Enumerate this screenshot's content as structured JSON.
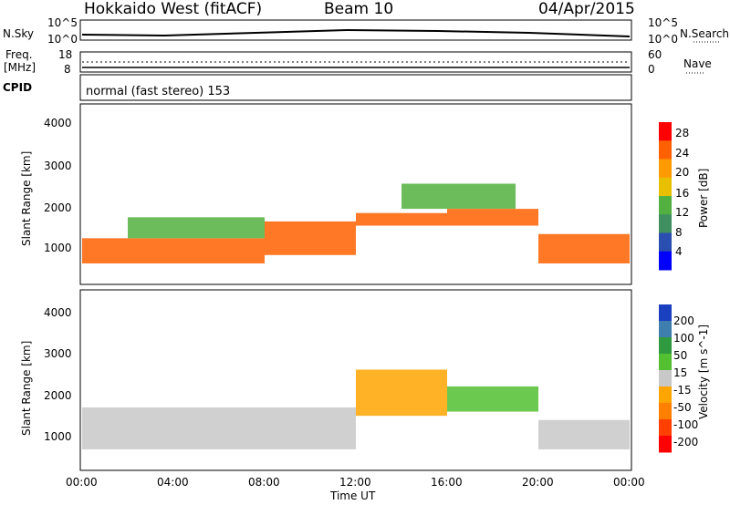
{
  "header": {
    "station": "Hokkaido West (fitACF)",
    "beam": "Beam 10",
    "date": "04/Apr/2015"
  },
  "top_panels": {
    "nsky_label": "N.Sky",
    "nsky_ticks": [
      "10^5",
      "10^0"
    ],
    "nsky_right_ticks": [
      "10^5",
      "10^0"
    ],
    "nsearch_label": "N.Search",
    "freq_label_1": "Freq.",
    "freq_label_2": "[MHz]",
    "freq_ticks": [
      "18",
      "8"
    ],
    "nave_label": "Nave",
    "nave_ticks": [
      "60",
      "0"
    ],
    "cpid_label": "CPID",
    "cpid_value": "normal (fast stereo) 153"
  },
  "colors": {
    "power_scale": [
      "#0000ff",
      "#2a4fb0",
      "#3f8f60",
      "#52b040",
      "#e8c000",
      "#ff9a00",
      "#ff6000",
      "#ff0000"
    ],
    "velocity_scale": [
      "#1a3fbf",
      "#3f7fb0",
      "#2f9a3f",
      "#52c030",
      "#c8c8c8",
      "#ffa500",
      "#ff8000",
      "#ff4000",
      "#ff0000"
    ]
  },
  "chart_data": [
    {
      "type": "heatmap",
      "name": "power",
      "ylabel": "Slant Range [km]",
      "yticks": [
        "1000",
        "2000",
        "3000",
        "4000"
      ],
      "yrange": [
        200,
        4500
      ],
      "colorbar_label": "Power [dB]",
      "colorbar_ticks": [
        "4",
        "8",
        "12",
        "16",
        "20",
        "24",
        "28"
      ],
      "bands": [
        {
          "t": [
            0,
            8
          ],
          "r": [
            700,
            1300
          ],
          "level": "high"
        },
        {
          "t": [
            2,
            8
          ],
          "r": [
            1300,
            1800
          ],
          "level": "mid"
        },
        {
          "t": [
            8,
            12
          ],
          "r": [
            900,
            1700
          ],
          "level": "high"
        },
        {
          "t": [
            12,
            16
          ],
          "r": [
            1600,
            1900
          ],
          "level": "high"
        },
        {
          "t": [
            14,
            19
          ],
          "r": [
            2000,
            2600
          ],
          "level": "mid"
        },
        {
          "t": [
            16,
            20
          ],
          "r": [
            1600,
            2000
          ],
          "level": "high"
        },
        {
          "t": [
            20,
            24
          ],
          "r": [
            700,
            1400
          ],
          "level": "high"
        }
      ]
    },
    {
      "type": "heatmap",
      "name": "velocity",
      "xlabel": "Time UT",
      "xticks": [
        "00:00",
        "04:00",
        "08:00",
        "12:00",
        "16:00",
        "20:00",
        "00:00"
      ],
      "ylabel": "Slant Range [km]",
      "yticks": [
        "1000",
        "2000",
        "3000",
        "4000"
      ],
      "yrange": [
        200,
        4500
      ],
      "colorbar_label": "Velocity [m s^-1]",
      "colorbar_ticks": [
        "200",
        "100",
        "50",
        "15",
        "-15",
        "-50",
        "-100",
        "-200"
      ],
      "bands": [
        {
          "t": [
            0,
            12
          ],
          "r": [
            700,
            1700
          ],
          "level": "gray"
        },
        {
          "t": [
            12,
            16
          ],
          "r": [
            1500,
            2600
          ],
          "level": "orange"
        },
        {
          "t": [
            16,
            20
          ],
          "r": [
            1600,
            2200
          ],
          "level": "green"
        },
        {
          "t": [
            20,
            24
          ],
          "r": [
            700,
            1400
          ],
          "level": "gray"
        }
      ]
    }
  ]
}
